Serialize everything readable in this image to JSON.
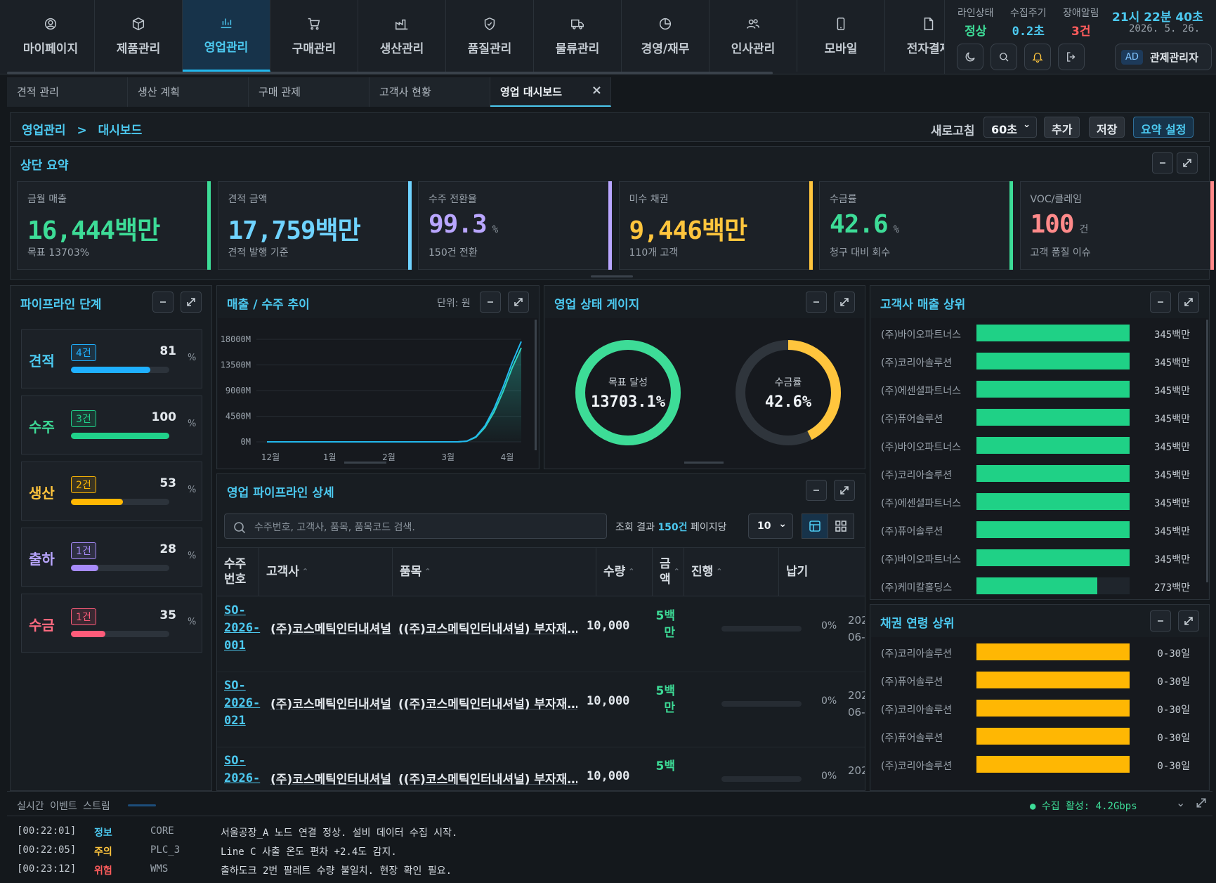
{
  "nav": {
    "items": [
      {
        "label": "마이페이지",
        "icon": "user-circle-icon"
      },
      {
        "label": "제품관리",
        "icon": "box-icon"
      },
      {
        "label": "영업관리",
        "icon": "chart-bar-icon",
        "active": true
      },
      {
        "label": "구매관리",
        "icon": "cart-icon"
      },
      {
        "label": "생산관리",
        "icon": "factory-icon"
      },
      {
        "label": "품질관리",
        "icon": "shield-check-icon"
      },
      {
        "label": "물류관리",
        "icon": "truck-icon"
      },
      {
        "label": "경영/재무",
        "icon": "pie-icon"
      },
      {
        "label": "인사관리",
        "icon": "users-icon"
      },
      {
        "label": "모바일",
        "icon": "mobile-icon"
      },
      {
        "label": "전자결재",
        "icon": "document-icon"
      }
    ]
  },
  "status": {
    "line_label": "라인상태",
    "line_value": "정상",
    "cycle_label": "수집주기",
    "cycle_value": "0.2초",
    "alarm_label": "장애알림",
    "alarm_value": "3건",
    "time": "21시 22분 40초",
    "date": "2026. 5. 26.",
    "user_badge": "AD",
    "user_name": "관제관리자"
  },
  "tabs": [
    {
      "label": "견적 관리"
    },
    {
      "label": "생산 계획"
    },
    {
      "label": "구매 관제"
    },
    {
      "label": "고객사 현황"
    },
    {
      "label": "영업 대시보드",
      "active": true
    }
  ],
  "breadcrumb": {
    "parent": "영업관리",
    "sep": ">",
    "current": "대시보드"
  },
  "toolbar": {
    "refresh_label": "새로고침",
    "refresh_value": "60초",
    "add": "추가",
    "save": "저장",
    "summary_settings": "요약 설정"
  },
  "summary": {
    "title": "상단 요약",
    "cards": [
      {
        "label": "금월 매출",
        "value": "16,444",
        "unit_inline": "백만",
        "sub": "목표 13703%",
        "color": "#3ddc97"
      },
      {
        "label": "견적 금액",
        "value": "17,759",
        "unit_inline": "백만",
        "sub": "견적 발행 기준",
        "color": "#6fd3ff"
      },
      {
        "label": "수주 전환율",
        "value": "99.3",
        "unit": "%",
        "sub": "150건 전환",
        "color": "#b9a6ff"
      },
      {
        "label": "미수 채권",
        "value": "9,446",
        "unit_inline": "백만",
        "sub": "110개 고객",
        "color": "#ffc53d"
      },
      {
        "label": "수금률",
        "value": "42.6",
        "unit": "%",
        "sub": "청구 대비 회수",
        "color": "#3ddc97"
      },
      {
        "label": "VOC/클레임",
        "value": "100",
        "unit": "건",
        "sub": "고객 품질 이슈",
        "color": "#ff8a8a"
      }
    ]
  },
  "pipeline": {
    "title": "파이프라인 단계",
    "stages": [
      {
        "name": "견적",
        "count": "4건",
        "pct": 81,
        "pct_text": "81",
        "unit": "%",
        "color": "#1fb0ff",
        "name_color": "#4cc9f0"
      },
      {
        "name": "수주",
        "count": "3건",
        "pct": 100,
        "pct_text": "100",
        "unit": "%",
        "color": "#20d18a",
        "name_color": "#3ddc97"
      },
      {
        "name": "생산",
        "count": "2건",
        "pct": 53,
        "pct_text": "53",
        "unit": "%",
        "color": "#ffb703",
        "name_color": "#ffc53d"
      },
      {
        "name": "출하",
        "count": "1건",
        "pct": 28,
        "pct_text": "28",
        "unit": "%",
        "color": "#a78bfa",
        "name_color": "#b9a6ff"
      },
      {
        "name": "수금",
        "count": "1건",
        "pct": 35,
        "pct_text": "35",
        "unit": "%",
        "color": "#ff5c7a",
        "name_color": "#ff6b81"
      }
    ]
  },
  "trend": {
    "title": "매출 / 수주 추이",
    "unit_label": "단위: 원"
  },
  "chart_data": {
    "type": "line",
    "title": "매출 / 수주 추이",
    "ylabel": "",
    "xlabel": "",
    "y_ticks": [
      "0M",
      "4500M",
      "9000M",
      "13500M",
      "18000M"
    ],
    "x_ticks": [
      "12월",
      "1월",
      "2월",
      "3월",
      "4월"
    ],
    "series": [
      {
        "name": "",
        "color": "#2dd4bf",
        "values": [
          0,
          0,
          0,
          0,
          0,
          0,
          0,
          0,
          0,
          0,
          0,
          0,
          0,
          0,
          0,
          0,
          0,
          0,
          0,
          0,
          0,
          0,
          100,
          800,
          2500,
          5200,
          8800,
          13000,
          16500
        ]
      },
      {
        "name": "",
        "color": "#22b8ee",
        "values": [
          0,
          0,
          0,
          0,
          0,
          0,
          0,
          0,
          0,
          0,
          0,
          0,
          0,
          0,
          0,
          0,
          0,
          0,
          0,
          0,
          0,
          0,
          120,
          900,
          2800,
          5800,
          9600,
          13900,
          17600
        ]
      }
    ],
    "ylim": [
      0,
      18000
    ]
  },
  "gauge": {
    "title": "영업 상태 게이지",
    "items": [
      {
        "label": "목표 달성",
        "value": "13703.1%",
        "fraction": 1.0,
        "color": "#3ddc97"
      },
      {
        "label": "수금률",
        "value": "42.6%",
        "fraction": 0.426,
        "color": "#ffc53d"
      }
    ]
  },
  "detail": {
    "title": "영업 파이프라인 상세",
    "search_placeholder": "수주번호, 고객사, 품목, 품목코드 검색.",
    "result_prefix": "조회 결과",
    "result_count": "150건",
    "page_label": "페이지당",
    "page_size": "10",
    "columns": [
      "수주\n번호",
      "고객사",
      "품목",
      "수량",
      "금\n액",
      "진행",
      "납기"
    ],
    "rows": [
      {
        "so": "SO-\n2026-\n001",
        "customer": "(주)코스메틱인터내셔널",
        "item": "((주)코스메틱인터내셔널) 부자재…",
        "qty": "10,000",
        "amount": "5백\n만",
        "progress": "0%",
        "due": "202\n06-"
      },
      {
        "so": "SO-\n2026-\n021",
        "customer": "(주)코스메틱인터내셔널",
        "item": "((주)코스메틱인터내셔널) 부자재…",
        "qty": "10,000",
        "amount": "5백\n만",
        "progress": "0%",
        "due": "202\n06-"
      },
      {
        "so": "SO-\n2026-",
        "customer": "(주)코스메틱인터내셔널",
        "item": "((주)코스메틱인터내셔널) 부자재…",
        "qty": "10,000",
        "amount": "5백",
        "progress": "0%",
        "due": "202"
      }
    ]
  },
  "top_customers": {
    "title": "고객사 매출 상위",
    "rows": [
      {
        "name": "(주)바이오파트너스",
        "value": "345백만",
        "fraction": 1
      },
      {
        "name": "(주)코리아솔루션",
        "value": "345백만",
        "fraction": 1
      },
      {
        "name": "(주)에센셜파트너스",
        "value": "345백만",
        "fraction": 1
      },
      {
        "name": "(주)퓨어솔루션",
        "value": "345백만",
        "fraction": 1
      },
      {
        "name": "(주)바이오파트너스",
        "value": "345백만",
        "fraction": 1
      },
      {
        "name": "(주)코리아솔루션",
        "value": "345백만",
        "fraction": 1
      },
      {
        "name": "(주)에센셜파트너스",
        "value": "345백만",
        "fraction": 1
      },
      {
        "name": "(주)퓨어솔루션",
        "value": "345백만",
        "fraction": 1
      },
      {
        "name": "(주)바이오파트너스",
        "value": "345백만",
        "fraction": 1
      },
      {
        "name": "(주)케미칼홀딩스",
        "value": "273백만",
        "fraction": 0.79
      }
    ]
  },
  "aging": {
    "title": "채권 연령 상위",
    "rows": [
      {
        "name": "(주)코리아솔루션",
        "value": "0-30일",
        "fraction": 1
      },
      {
        "name": "(주)퓨어솔루션",
        "value": "0-30일",
        "fraction": 1
      },
      {
        "name": "(주)코리아솔루션",
        "value": "0-30일",
        "fraction": 1
      },
      {
        "name": "(주)퓨어솔루션",
        "value": "0-30일",
        "fraction": 1
      },
      {
        "name": "(주)코리아솔루션",
        "value": "0-30일",
        "fraction": 1
      }
    ]
  },
  "stream": {
    "title": "실시간 이벤트 스트림",
    "status": "수집 활성: 4.2Gbps",
    "events": [
      {
        "time": "[00:22:01]",
        "level": "정보",
        "level_color": "#4cc9f0",
        "source": "CORE",
        "message": "서울공장_A 노드 연결 정상. 설비 데이터 수집 시작."
      },
      {
        "time": "[00:22:05]",
        "level": "주의",
        "level_color": "#ffc53d",
        "source": "PLC_3",
        "message": "Line C 사출 온도 편차 +2.4도 감지."
      },
      {
        "time": "[00:23:12]",
        "level": "위험",
        "level_color": "#ff5c5c",
        "source": "WMS",
        "message": "출하도크 2번 팔레트 수량 불일치. 현장 확인 필요."
      }
    ]
  }
}
